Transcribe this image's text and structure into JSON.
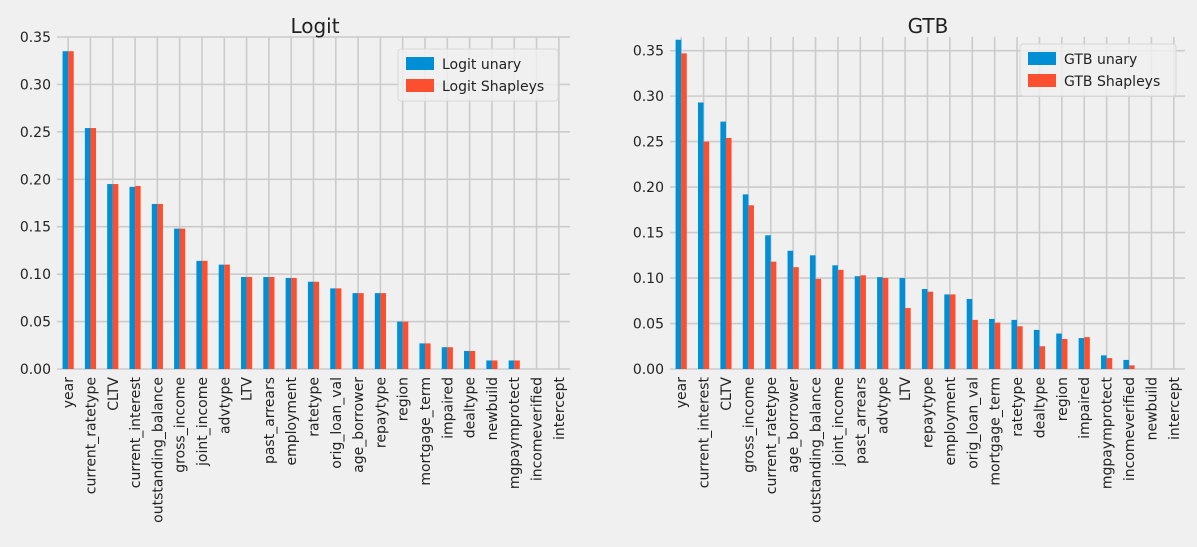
{
  "colors": {
    "unary": "#008fd5",
    "shapley": "#fc4f30",
    "background": "#f0f0f0",
    "grid": "#cbcbcb",
    "legend_bg": "#f0f0f0"
  },
  "chart_data": [
    {
      "type": "bar",
      "title": "Logit",
      "xlabel": "",
      "ylabel": "",
      "ylim": [
        0,
        0.35
      ],
      "yticks": [
        "0.00",
        "0.05",
        "0.10",
        "0.15",
        "0.20",
        "0.25",
        "0.30",
        "0.35"
      ],
      "legend_position": "top-right",
      "grid": true,
      "categories": [
        "year",
        "current_ratetype",
        "CLTV",
        "current_interest",
        "outstanding_balance",
        "gross_income",
        "joint_income",
        "advtype",
        "LTV",
        "past_arrears",
        "employment",
        "ratetype",
        "orig_loan_val",
        "age_borrower",
        "repaytype",
        "region",
        "mortgage_term",
        "impaired",
        "dealtype",
        "newbuild",
        "mgpaymprotect",
        "incomeverified",
        "intercept"
      ],
      "series": [
        {
          "name": "Logit unary",
          "values": [
            0.335,
            0.254,
            0.195,
            0.192,
            0.174,
            0.148,
            0.114,
            0.11,
            0.097,
            0.097,
            0.096,
            0.092,
            0.085,
            0.08,
            0.08,
            0.05,
            0.027,
            0.023,
            0.019,
            0.009,
            0.009,
            0.0,
            0.0
          ]
        },
        {
          "name": "Logit Shapleys",
          "values": [
            0.335,
            0.254,
            0.195,
            0.193,
            0.174,
            0.148,
            0.114,
            0.11,
            0.097,
            0.097,
            0.096,
            0.092,
            0.085,
            0.08,
            0.08,
            0.05,
            0.027,
            0.023,
            0.019,
            0.009,
            0.009,
            0.0,
            0.0
          ]
        }
      ]
    },
    {
      "type": "bar",
      "title": "GTB",
      "xlabel": "",
      "ylabel": "",
      "ylim": [
        0,
        0.365
      ],
      "yticks": [
        "0.00",
        "0.05",
        "0.10",
        "0.15",
        "0.20",
        "0.25",
        "0.30",
        "0.35"
      ],
      "legend_position": "top-right",
      "grid": true,
      "categories": [
        "year",
        "current_interest",
        "CLTV",
        "gross_income",
        "current_ratetype",
        "age_borrower",
        "outstanding_balance",
        "joint_income",
        "past_arrears",
        "advtype",
        "LTV",
        "repaytype",
        "employment",
        "orig_loan_val",
        "mortgage_term",
        "ratetype",
        "dealtype",
        "region",
        "impaired",
        "mgpaymprotect",
        "incomeverified",
        "newbuild",
        "intercept"
      ],
      "series": [
        {
          "name": "GTB unary",
          "values": [
            0.362,
            0.293,
            0.272,
            0.192,
            0.147,
            0.13,
            0.125,
            0.114,
            0.102,
            0.101,
            0.1,
            0.088,
            0.082,
            0.077,
            0.055,
            0.054,
            0.043,
            0.039,
            0.034,
            0.015,
            0.01,
            0.0,
            0.0
          ]
        },
        {
          "name": "GTB Shapleys",
          "values": [
            0.347,
            0.25,
            0.254,
            0.18,
            0.118,
            0.112,
            0.099,
            0.109,
            0.103,
            0.1,
            0.067,
            0.085,
            0.082,
            0.054,
            0.051,
            0.047,
            0.025,
            0.033,
            0.035,
            0.012,
            0.004,
            0.0,
            0.0
          ]
        }
      ]
    }
  ]
}
